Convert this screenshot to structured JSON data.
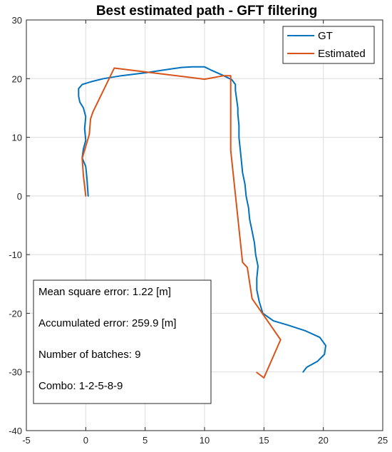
{
  "chart_data": {
    "type": "line",
    "title": "Best estimated path - GFT filtering",
    "xlabel": "",
    "ylabel": "",
    "xlim": [
      -5,
      25
    ],
    "ylim": [
      -40,
      30
    ],
    "xticks": [
      -5,
      0,
      5,
      10,
      15,
      20,
      25
    ],
    "yticks": [
      -40,
      -30,
      -20,
      -10,
      0,
      10,
      20,
      30
    ],
    "grid": true,
    "legend_position": "top-right",
    "series": [
      {
        "name": "GT",
        "color": "#0072BD",
        "points": [
          [
            0.2,
            0.0
          ],
          [
            0.1,
            3.0
          ],
          [
            0.0,
            5.0
          ],
          [
            -0.3,
            6.5
          ],
          [
            -0.2,
            8.0
          ],
          [
            0.0,
            9.5
          ],
          [
            -0.1,
            11.5
          ],
          [
            0.0,
            13.5
          ],
          [
            -0.2,
            15.0
          ],
          [
            -0.5,
            16.0
          ],
          [
            -0.6,
            17.0
          ],
          [
            -0.6,
            18.3
          ],
          [
            -0.3,
            19.0
          ],
          [
            0.5,
            19.5
          ],
          [
            1.5,
            20.0
          ],
          [
            3.0,
            20.5
          ],
          [
            5.0,
            21.0
          ],
          [
            7.0,
            21.6
          ],
          [
            8.0,
            21.9
          ],
          [
            9.0,
            22.0
          ],
          [
            10.0,
            22.0
          ],
          [
            10.5,
            21.5
          ],
          [
            11.5,
            20.6
          ],
          [
            12.3,
            19.8
          ],
          [
            12.6,
            19.0
          ],
          [
            12.6,
            18.0
          ],
          [
            12.7,
            16.5
          ],
          [
            12.8,
            15.0
          ],
          [
            12.8,
            14.0
          ],
          [
            12.9,
            12.0
          ],
          [
            12.9,
            10.0
          ],
          [
            13.0,
            8.0
          ],
          [
            13.1,
            6.0
          ],
          [
            13.2,
            4.0
          ],
          [
            13.4,
            2.0
          ],
          [
            13.5,
            0.0
          ],
          [
            13.7,
            -2.0
          ],
          [
            13.8,
            -4.0
          ],
          [
            14.0,
            -6.0
          ],
          [
            14.2,
            -8.0
          ],
          [
            14.3,
            -10.0
          ],
          [
            14.5,
            -12.0
          ],
          [
            14.4,
            -14.0
          ],
          [
            14.4,
            -16.0
          ],
          [
            14.6,
            -18.0
          ],
          [
            14.9,
            -20.0
          ],
          [
            15.8,
            -21.3
          ],
          [
            17.0,
            -22.0
          ],
          [
            18.5,
            -23.0
          ],
          [
            19.7,
            -24.1
          ],
          [
            20.2,
            -25.5
          ],
          [
            20.1,
            -27.0
          ],
          [
            19.5,
            -28.2
          ],
          [
            18.6,
            -29.2
          ],
          [
            18.3,
            -30.0
          ]
        ]
      },
      {
        "name": "Estimated",
        "color": "#D95319",
        "points": [
          [
            0.0,
            0.0
          ],
          [
            -0.2,
            3.5
          ],
          [
            -0.3,
            6.4
          ],
          [
            0.3,
            10.5
          ],
          [
            0.4,
            13.1
          ],
          [
            0.6,
            14.3
          ],
          [
            2.4,
            21.8
          ],
          [
            6.0,
            20.9
          ],
          [
            10.0,
            19.9
          ],
          [
            11.6,
            20.5
          ],
          [
            12.2,
            20.5
          ],
          [
            12.2,
            7.8
          ],
          [
            13.2,
            -11.3
          ],
          [
            13.6,
            -12.2
          ],
          [
            14.0,
            -17.5
          ],
          [
            16.4,
            -24.5
          ],
          [
            15.0,
            -31.0
          ],
          [
            14.4,
            -30.1
          ]
        ]
      }
    ],
    "annotations": [
      "Mean square error: 1.22 [m]",
      "Accumulated error: 259.9 [m]",
      "Number of batches: 9",
      "Combo: 1-2-5-8-9"
    ]
  }
}
